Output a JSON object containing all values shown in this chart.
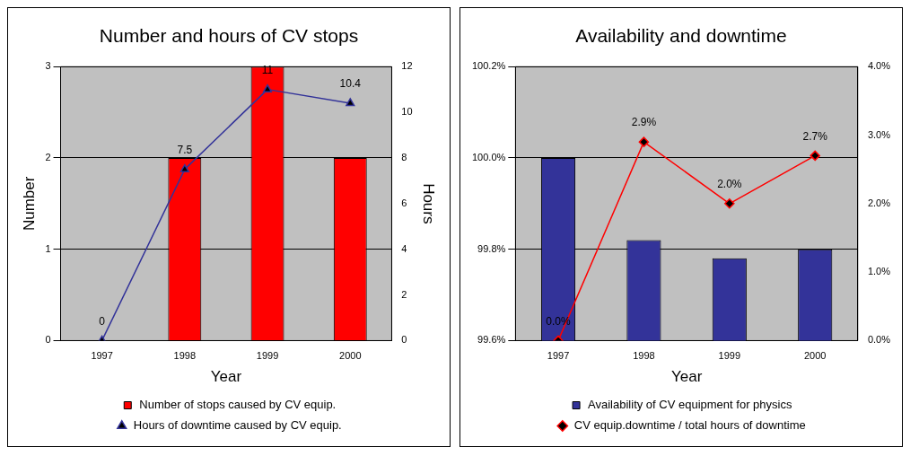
{
  "chart_data": [
    {
      "type": "bar",
      "title": "Number and hours of CV stops",
      "xlabel": "Year",
      "ylabel": "Number",
      "y2label": "Hours",
      "categories": [
        "1997",
        "1998",
        "1999",
        "2000"
      ],
      "series": [
        {
          "name": "Number of stops caused by CV equip.",
          "color": "#ff0000",
          "values": [
            0,
            2,
            3,
            2
          ]
        },
        {
          "name": "Hours of downtime caused by CV equip.",
          "type": "line",
          "axis": "y2",
          "color": "#333399",
          "marker": "triangle",
          "values": [
            0,
            7.5,
            11,
            10.4
          ],
          "value_labels": [
            "0",
            "7.5",
            "11",
            "10.4"
          ]
        }
      ],
      "ylim": [
        0,
        3
      ],
      "yticks": [
        0,
        1,
        2,
        3
      ],
      "y2lim": [
        0,
        12
      ],
      "y2ticks": [
        0,
        2,
        4,
        6,
        8,
        10,
        12
      ],
      "grid": "y",
      "legend": "bottom"
    },
    {
      "type": "bar",
      "title": "Availability and downtime",
      "xlabel": "Year",
      "categories": [
        "1997",
        "1998",
        "1999",
        "2000"
      ],
      "series": [
        {
          "name": "Availability of CV equipment for physics",
          "color": "#333399",
          "values": [
            100.0,
            99.82,
            99.78,
            99.8
          ]
        },
        {
          "name": "CV equip.downtime / total hours of downtime",
          "type": "line",
          "axis": "y2",
          "color": "#ff0000",
          "marker": "diamond",
          "values": [
            0,
            2.9,
            2.0,
            2.7
          ],
          "value_labels": [
            "0.0%",
            "2.9%",
            "2.0%",
            "2.7%"
          ]
        }
      ],
      "ylim": [
        99.6,
        100.2
      ],
      "yticks": [
        {
          "value": 99.6,
          "label": "99.6%"
        },
        {
          "value": 99.8,
          "label": "99.8%"
        },
        {
          "value": 100.0,
          "label": "100.0%"
        },
        {
          "value": 100.2,
          "label": "100.2%"
        }
      ],
      "y2lim": [
        0,
        4
      ],
      "y2ticks": [
        {
          "value": 0,
          "label": "0.0%"
        },
        {
          "value": 1,
          "label": "1.0%"
        },
        {
          "value": 2,
          "label": "2.0%"
        },
        {
          "value": 3,
          "label": "3.0%"
        },
        {
          "value": 4,
          "label": "4.0%"
        }
      ],
      "grid": "y",
      "legend": "bottom"
    }
  ]
}
